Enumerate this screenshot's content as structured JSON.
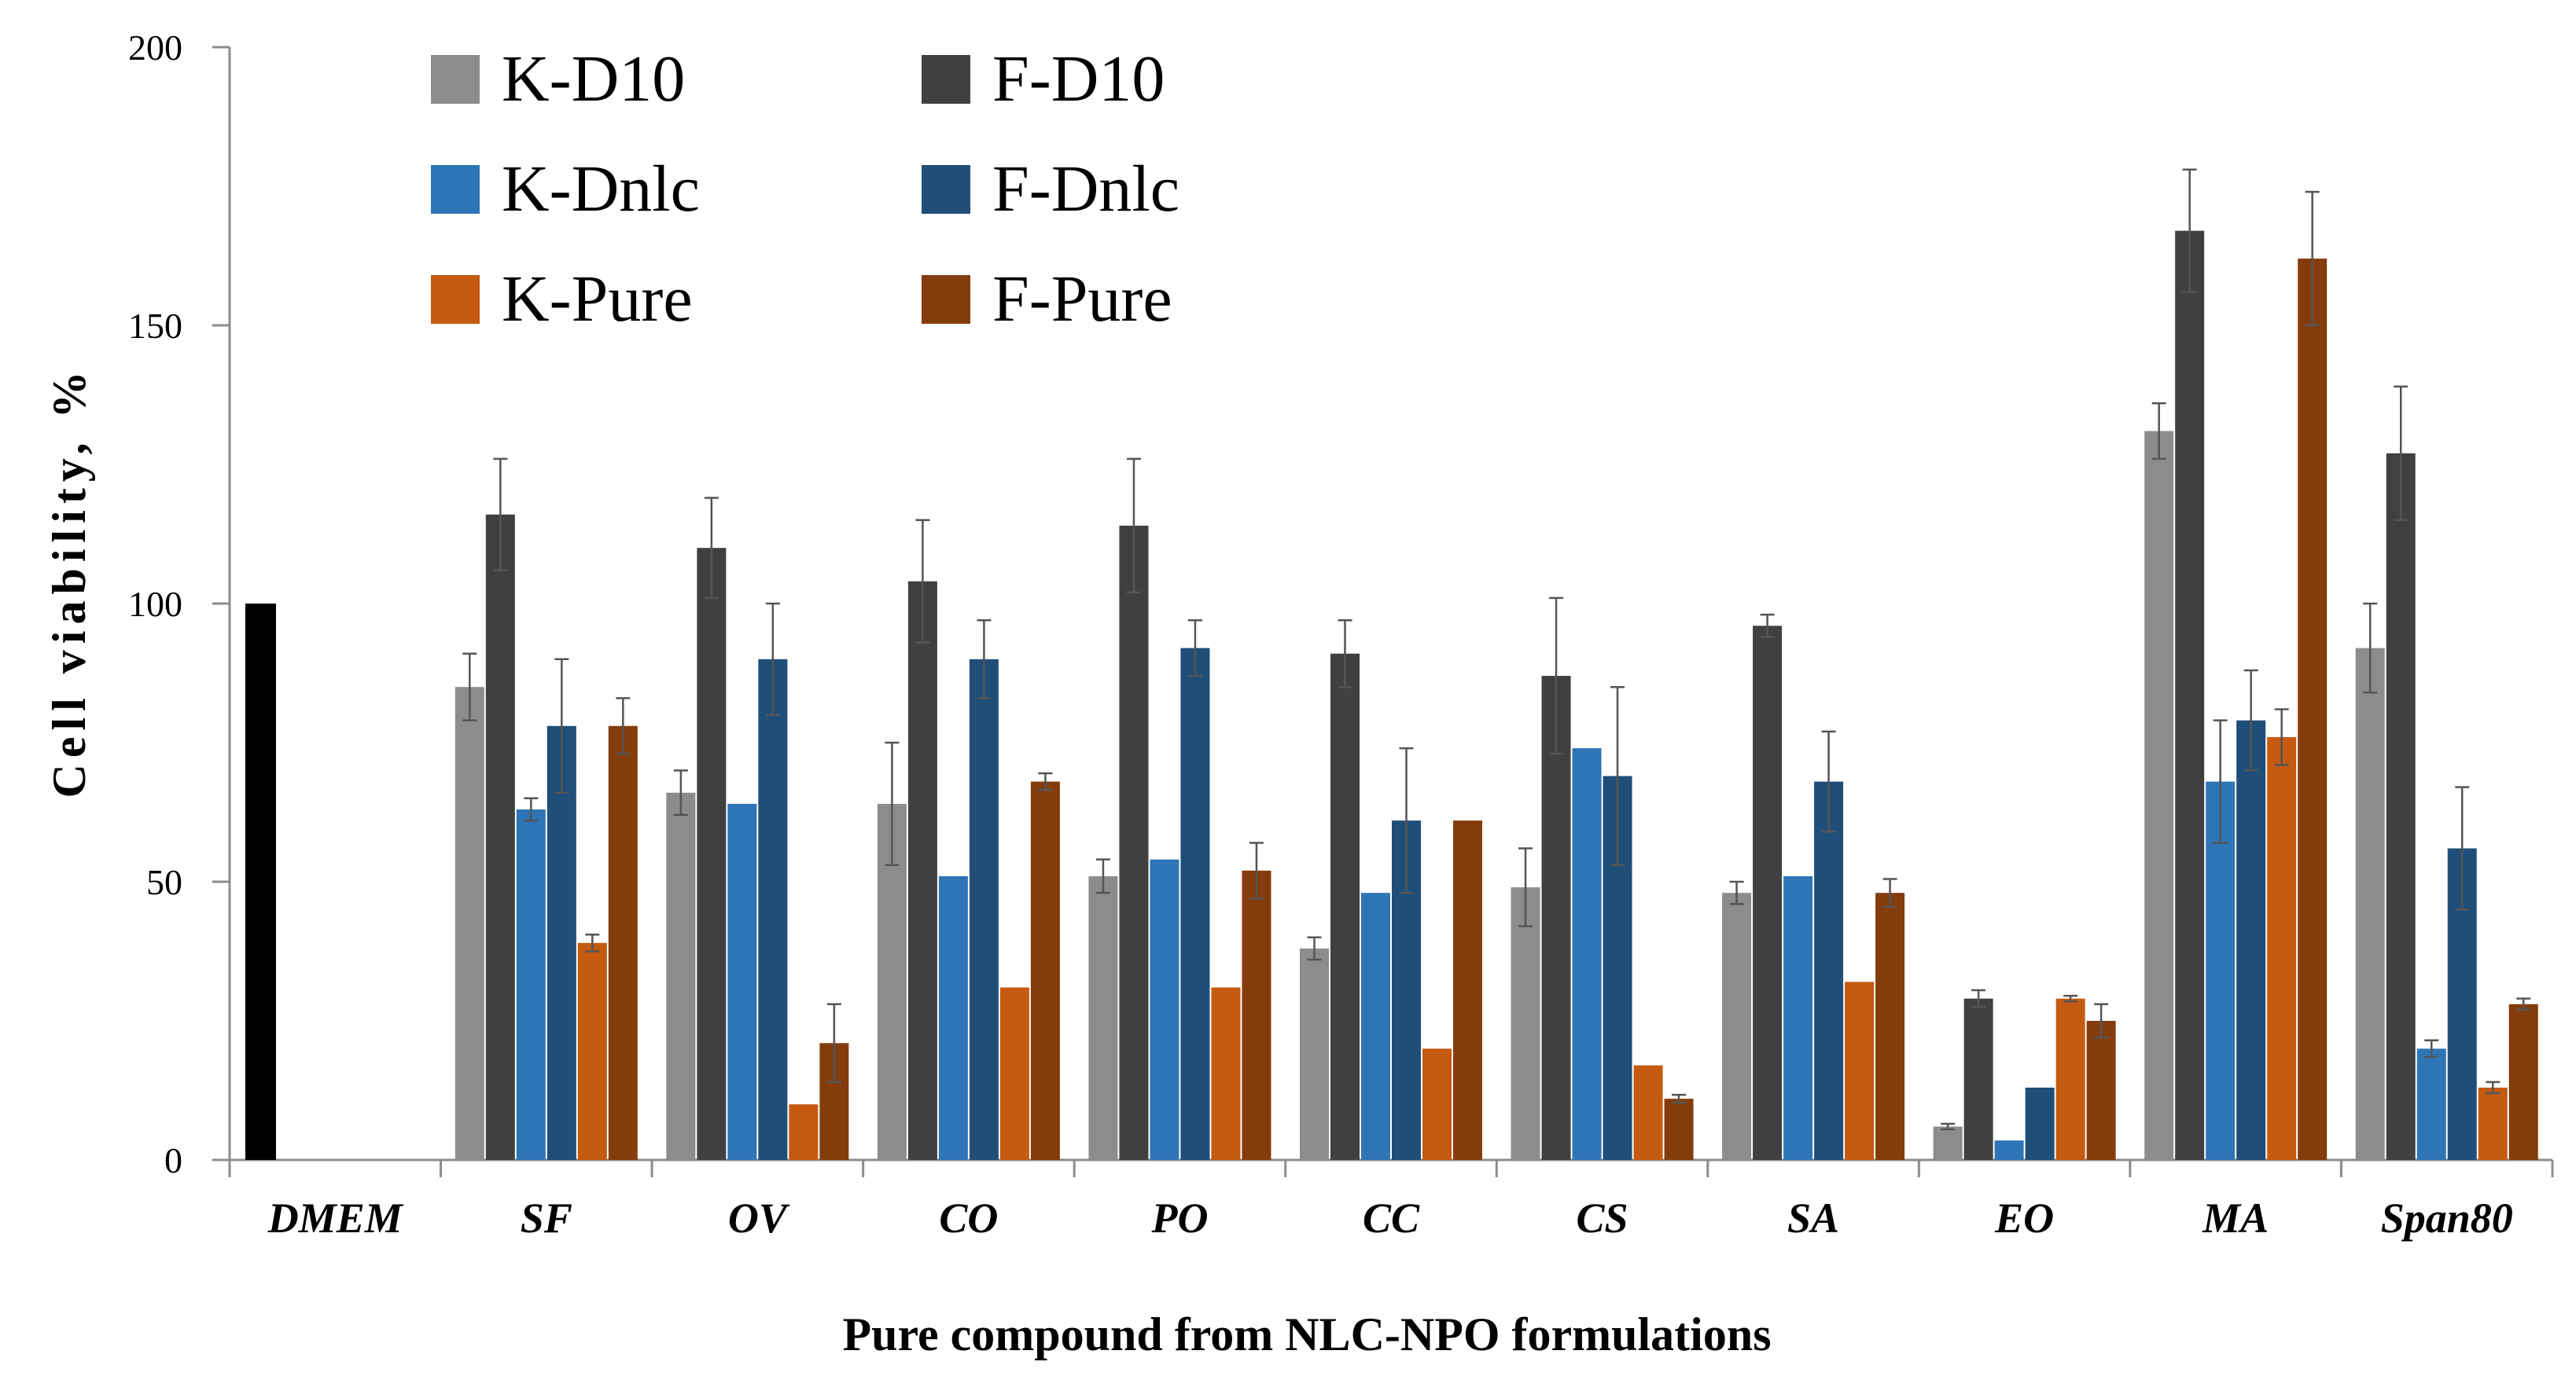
{
  "chart_data": {
    "type": "bar",
    "title": "",
    "xlabel": "Pure compound from NLC-NPO formulations",
    "ylabel": "Cell viability,  %",
    "ylim": [
      0,
      200
    ],
    "yticks": [
      0,
      50,
      100,
      150,
      200
    ],
    "grid": false,
    "legend_position": "top-left",
    "categories": [
      "DMEM",
      "SF",
      "OV",
      "CO",
      "PO",
      "CC",
      "CS",
      "SA",
      "EO",
      "MA",
      "Span80"
    ],
    "control": {
      "category": "DMEM",
      "value": 100,
      "color": "#000000"
    },
    "series": [
      {
        "name": "K-D10",
        "color": "#8c8c8c",
        "values": [
          null,
          85,
          66,
          64,
          51,
          38,
          49,
          48,
          6,
          131,
          92
        ],
        "errors": [
          null,
          6,
          4,
          11,
          3,
          2,
          7,
          2,
          0.5,
          5,
          8
        ]
      },
      {
        "name": "F-D10",
        "color": "#404040",
        "values": [
          null,
          116,
          110,
          104,
          114,
          91,
          87,
          96,
          29,
          167,
          127
        ],
        "errors": [
          null,
          10,
          9,
          11,
          12,
          6,
          14,
          2,
          1.5,
          11,
          12
        ]
      },
      {
        "name": "K-Dnlc",
        "color": "#2e75b6",
        "values": [
          null,
          63,
          64,
          51,
          54,
          48,
          74,
          51,
          3.5,
          68,
          20
        ],
        "errors": [
          null,
          2,
          0,
          0,
          0,
          0,
          0,
          0,
          0,
          11,
          1.5
        ]
      },
      {
        "name": "F-Dnlc",
        "color": "#1f4e79",
        "values": [
          null,
          78,
          90,
          90,
          92,
          61,
          69,
          68,
          13,
          79,
          56
        ],
        "errors": [
          null,
          12,
          10,
          7,
          5,
          13,
          16,
          9,
          0,
          9,
          11
        ]
      },
      {
        "name": "K-Pure",
        "color": "#c55a11",
        "values": [
          null,
          39,
          10,
          31,
          31,
          20,
          17,
          32,
          29,
          76,
          13
        ],
        "errors": [
          null,
          1.5,
          0,
          0,
          0,
          0,
          0,
          0,
          0.5,
          5,
          1
        ]
      },
      {
        "name": "F-Pure",
        "color": "#843c0c",
        "values": [
          null,
          78,
          21,
          68,
          52,
          61,
          11,
          48,
          25,
          162,
          28
        ],
        "errors": [
          null,
          5,
          7,
          1.5,
          5,
          0,
          0.7,
          2.5,
          3,
          12,
          1
        ]
      }
    ]
  }
}
